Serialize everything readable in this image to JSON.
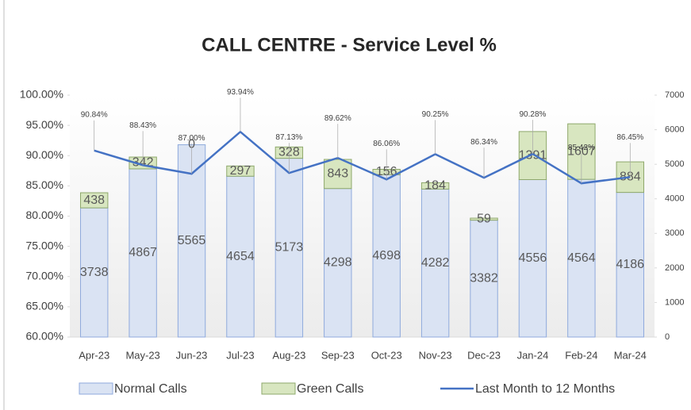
{
  "chart_data": {
    "type": "bar-line",
    "title": "CALL CENTRE - Service Level %",
    "categories": [
      "Apr-23",
      "May-23",
      "Jun-23",
      "Jul-23",
      "Aug-23",
      "Sep-23",
      "Oct-23",
      "Nov-23",
      "Dec-23",
      "Jan-24",
      "Feb-24",
      "Mar-24"
    ],
    "series": [
      {
        "name": "Normal Calls",
        "type": "bar",
        "axis": "y2",
        "color": "#dae3f3",
        "stroke": "#8faadc",
        "values": [
          3738,
          4867,
          5565,
          4654,
          5173,
          4298,
          4698,
          4282,
          3382,
          4556,
          4564,
          4186
        ]
      },
      {
        "name": "Green Calls",
        "type": "bar",
        "axis": "y2",
        "color": "#d8e6c0",
        "stroke": "#8ea86b",
        "values": [
          438,
          342,
          0,
          297,
          328,
          843,
          156,
          184,
          59,
          1391,
          1607,
          884
        ]
      },
      {
        "name": "Last Month to 12 Months",
        "type": "line",
        "axis": "y",
        "color": "#4472c4",
        "values": [
          90.84,
          88.43,
          87.0,
          93.94,
          87.13,
          89.62,
          86.06,
          90.25,
          86.34,
          90.28,
          85.42,
          86.45
        ],
        "value_labels": [
          "90.84%",
          "88.43%",
          "87.00%",
          "93.94%",
          "87.13%",
          "89.62%",
          "86.06%",
          "90.25%",
          "86.34%",
          "90.28%",
          "85.42%",
          "86.45%"
        ]
      }
    ],
    "ylim": [
      60,
      100
    ],
    "yticks": [
      {
        "value": 60,
        "label": "60.00%"
      },
      {
        "value": 65,
        "label": "65.00%"
      },
      {
        "value": 70,
        "label": "70.00%"
      },
      {
        "value": 75,
        "label": "75.00%"
      },
      {
        "value": 80,
        "label": "80.00%"
      },
      {
        "value": 85,
        "label": "85.00%"
      },
      {
        "value": 90,
        "label": "90.00%"
      },
      {
        "value": 95,
        "label": "95.00%"
      },
      {
        "value": 100,
        "label": "100.00%"
      }
    ],
    "y2lim": [
      0,
      7000
    ],
    "y2ticks": [
      0,
      1000,
      2000,
      3000,
      4000,
      5000,
      6000,
      7000
    ],
    "stacked": true
  }
}
